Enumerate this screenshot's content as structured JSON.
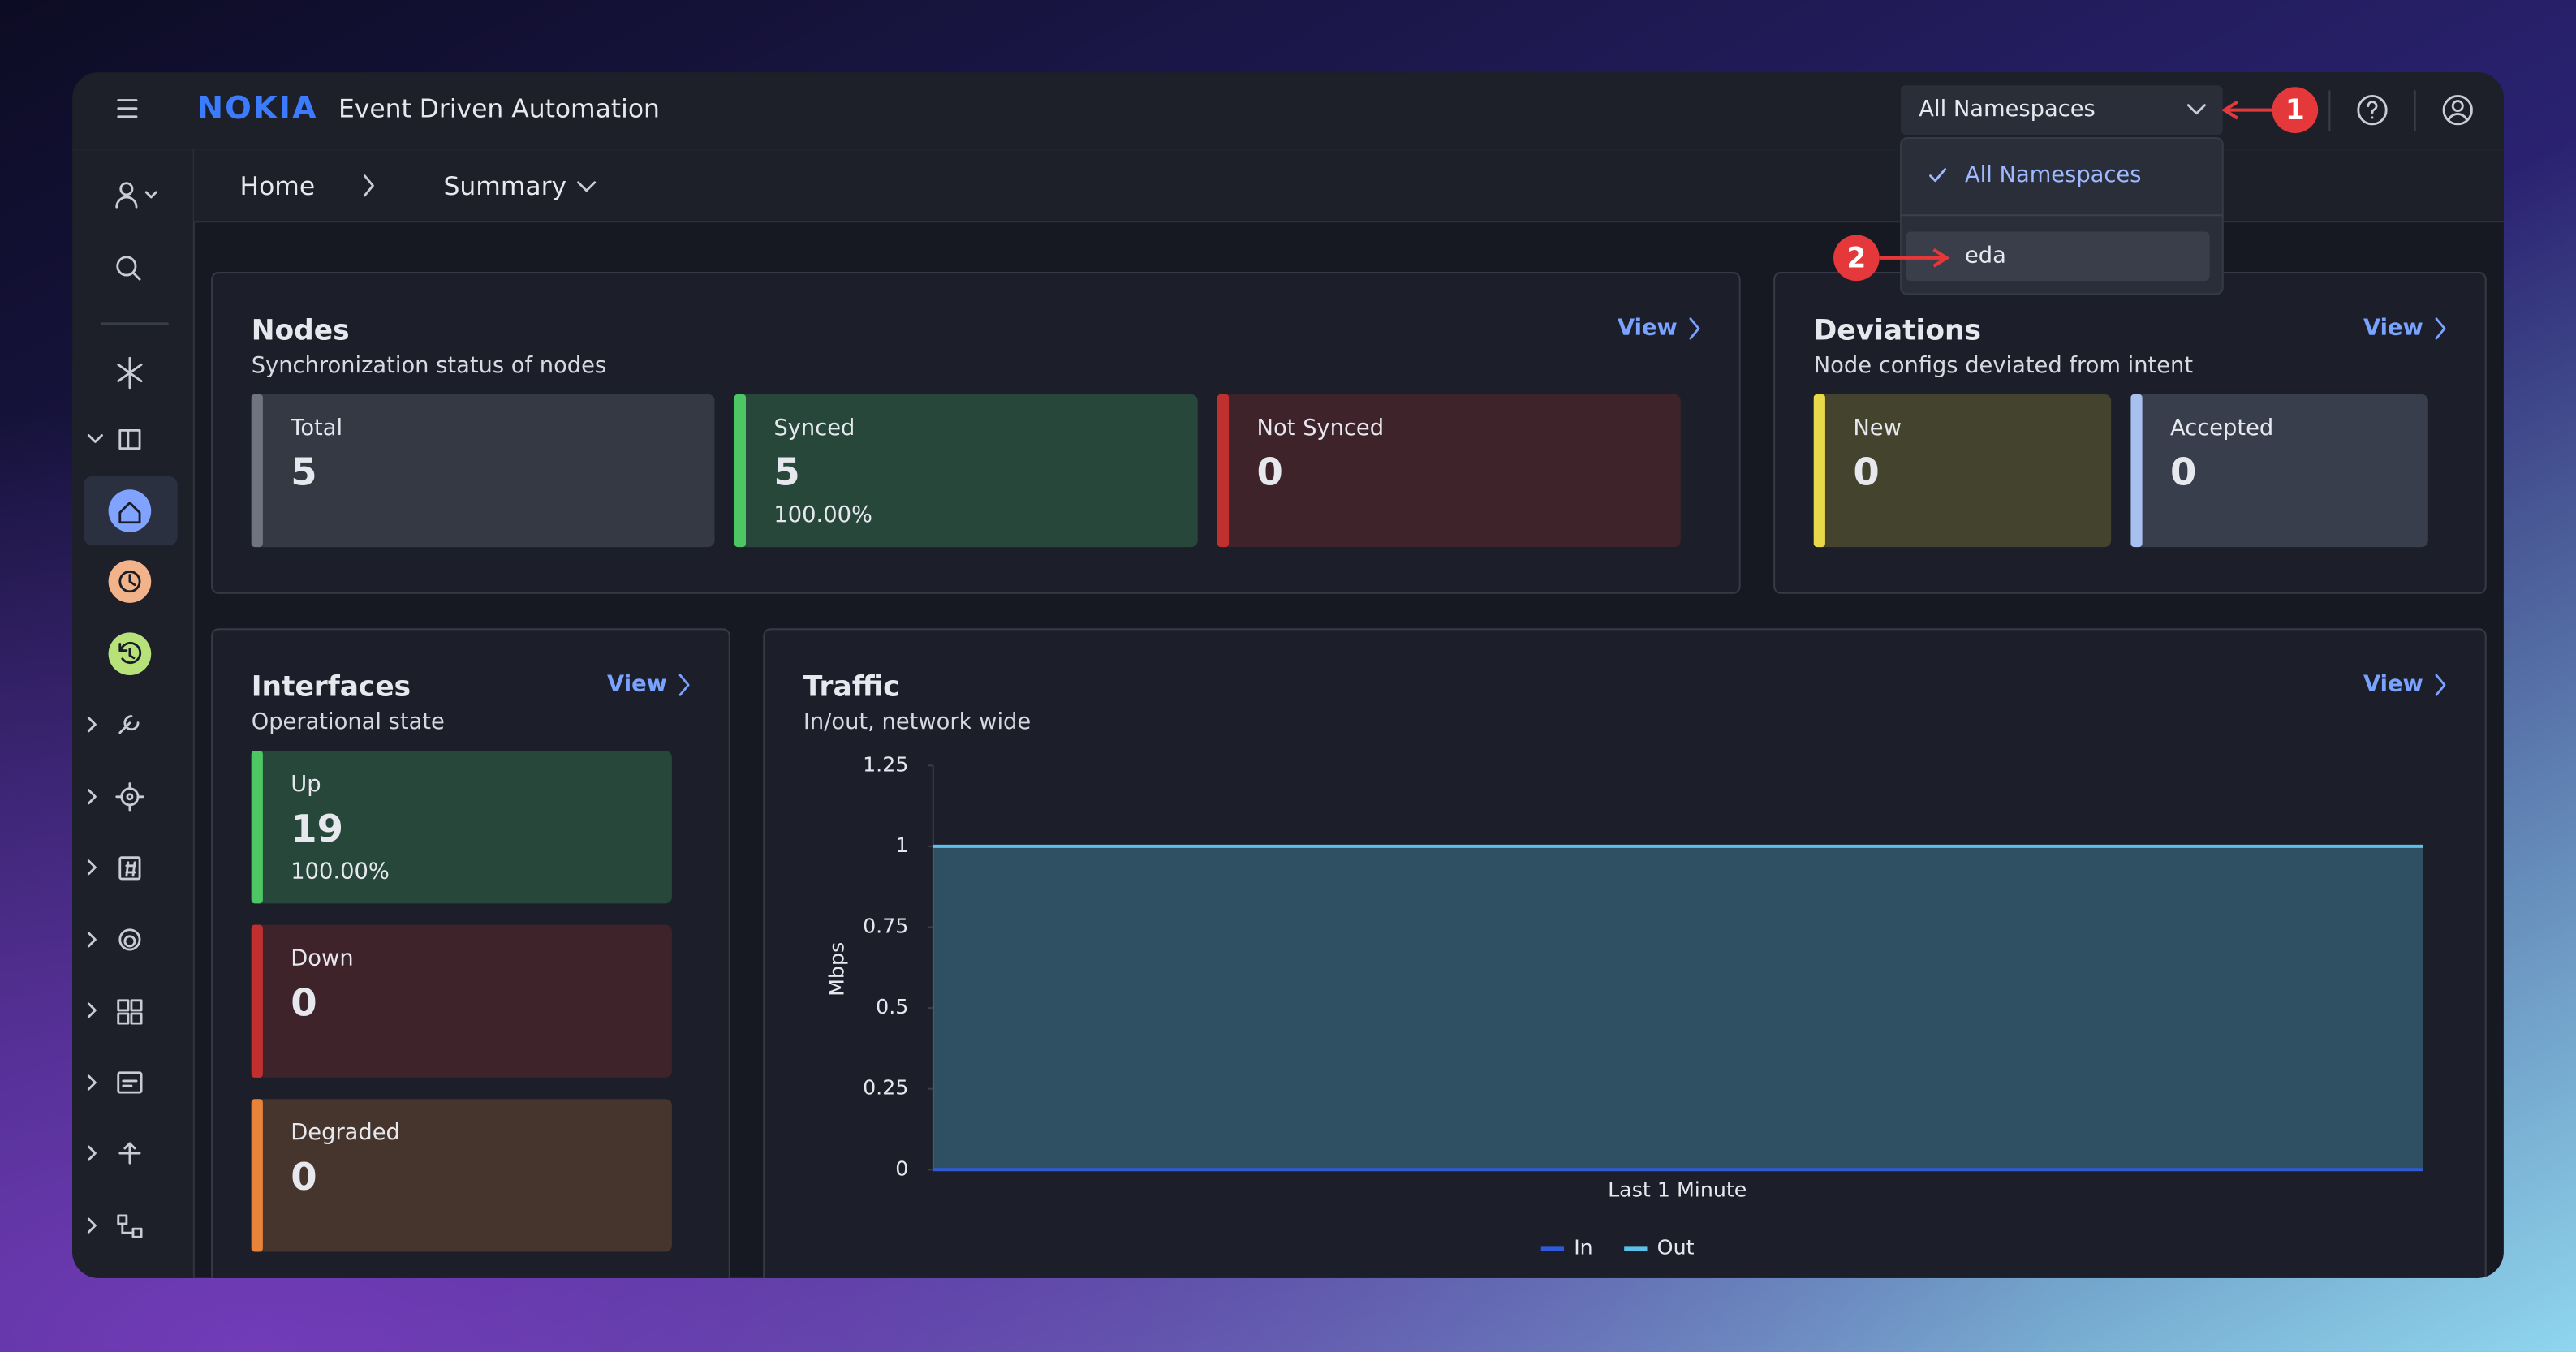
{
  "header": {
    "brand": "NOKIA",
    "app_title": "Event Driven Automation",
    "namespace": "All Namespaces"
  },
  "dropdown": {
    "options": [
      "All Namespaces",
      "eda"
    ]
  },
  "annotations": [
    "1",
    "2"
  ],
  "breadcrumb": [
    "Home",
    "Summary"
  ],
  "nodes": {
    "title": "Nodes",
    "subtitle": "Synchronization status of nodes",
    "link": "View",
    "tiles": [
      {
        "label": "Total",
        "value": 5
      },
      {
        "label": "Synced",
        "value": 5,
        "percent": "100.00%"
      },
      {
        "label": "Not Synced",
        "value": 0
      }
    ]
  },
  "deviations": {
    "title": "Deviations",
    "subtitle": "Node configs deviated from intent",
    "link": "View",
    "tiles": [
      {
        "label": "New",
        "value": 0
      },
      {
        "label": "Accepted",
        "value": 0
      }
    ]
  },
  "interfaces": {
    "title": "Interfaces",
    "subtitle": "Operational state",
    "link": "View",
    "tiles": [
      {
        "label": "Up",
        "value": 19,
        "percent": "100.00%"
      },
      {
        "label": "Down",
        "value": 0
      },
      {
        "label": "Degraded",
        "value": 0
      }
    ]
  },
  "traffic": {
    "title": "Traffic",
    "subtitle": "In/out, network wide",
    "link": "View",
    "y_label": "Mbps",
    "x_label": "Last 1 Minute",
    "ylim": [
      0,
      1.25
    ],
    "yticks": [
      0,
      0.25,
      0.5,
      0.75,
      1,
      1.25
    ],
    "series": [
      {
        "name": "In",
        "color": "#2f5bd8",
        "values": [
          0,
          0
        ]
      },
      {
        "name": "Out",
        "color": "#5cc0e8",
        "values": [
          1,
          1
        ]
      }
    ]
  }
}
